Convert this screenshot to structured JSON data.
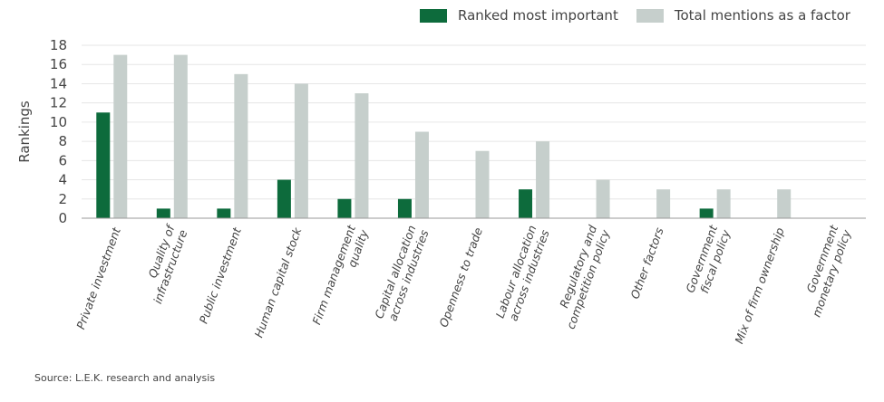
{
  "legend": {
    "series_1": "Ranked most important",
    "series_2": "Total mentions as a factor"
  },
  "source": "Source: L.E.K. research and analysis",
  "colors": {
    "series_1": "#0d6b3c",
    "series_2": "#c6cfcc",
    "grid": "#e6e6e6",
    "axis": "#999999"
  },
  "chart_data": {
    "type": "bar",
    "title": "",
    "xlabel": "",
    "ylabel": "Rankings",
    "ylim": [
      0,
      18
    ],
    "yticks": [
      0,
      2,
      4,
      6,
      8,
      10,
      12,
      14,
      16,
      18
    ],
    "grid": true,
    "legend_position": "top-right",
    "categories": [
      "Private investment",
      "Quality of infrastructure",
      "Public investment",
      "Human capital stock",
      "Firm management quality",
      "Capital allocation across industries",
      "Openness to trade",
      "Labour allocation across industries",
      "Regulatory and competition policy",
      "Other factors",
      "Government fiscal policy",
      "Mix of firm ownership",
      "Government monetary policy"
    ],
    "category_lines": [
      [
        "Private investment"
      ],
      [
        "Quality of",
        "infrastructure"
      ],
      [
        "Public investment"
      ],
      [
        "Human capital stock"
      ],
      [
        "Firm management",
        "quality"
      ],
      [
        "Capital allocation",
        "across industries"
      ],
      [
        "Openness to trade"
      ],
      [
        "Labour allocation",
        "across industries"
      ],
      [
        "Regulatory and",
        "competition policy"
      ],
      [
        "Other factors"
      ],
      [
        "Government",
        "fiscal policy"
      ],
      [
        "Mix of firm ownership"
      ],
      [
        "Government",
        "monetary policy"
      ]
    ],
    "series": [
      {
        "name": "Ranked most important",
        "values": [
          11,
          1,
          1,
          4,
          2,
          2,
          0,
          3,
          0,
          0,
          1,
          0,
          0
        ]
      },
      {
        "name": "Total mentions as a factor",
        "values": [
          17,
          17,
          15,
          14,
          13,
          9,
          7,
          8,
          4,
          3,
          3,
          3,
          0
        ]
      }
    ]
  }
}
